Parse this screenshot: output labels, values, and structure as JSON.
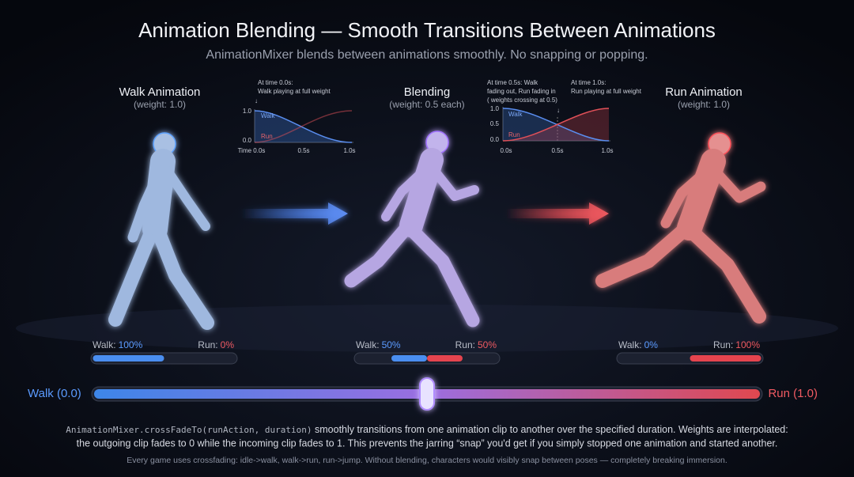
{
  "header": {
    "title": "Animation Blending — Smooth Transitions Between Animations",
    "subtitle": "AnimationMixer blends between animations smoothly. No snapping or popping."
  },
  "panels": [
    {
      "title": "Walk Animation",
      "weight": "(weight: 1.0)",
      "walk_label": "Walk:",
      "walk": {
        "value": 100,
        "label": "100%"
      },
      "run_label": "Run:",
      "run": {
        "value": 0,
        "label": "0%"
      }
    },
    {
      "title": "Blending",
      "weight": "(weight: 0.5 each)",
      "walk_label": "Walk:",
      "walk": {
        "value": 50,
        "label": "50%"
      },
      "run_label": "Run:",
      "run": {
        "value": 50,
        "label": "50%"
      }
    },
    {
      "title": "Run Animation",
      "weight": "(weight: 1.0)",
      "walk_label": "Walk:",
      "walk": {
        "value": 0,
        "label": "0%"
      },
      "run_label": "Run:",
      "run": {
        "value": 100,
        "label": "100%"
      }
    }
  ],
  "mini_chart_1": {
    "note": [
      "At time 0.0s:",
      "Walk playing at full weight"
    ],
    "arrow": "↓",
    "yticks": [
      "1.0",
      "0.0"
    ],
    "xticks": [
      "Time 0.0s",
      "0.5s",
      "1.0s"
    ],
    "walk": "Walk",
    "run": "Run"
  },
  "mini_chart_2": {
    "note_left": [
      "At time 0.5s: Walk",
      "fading out, Run fading in",
      "( weights crossing at 0.5)"
    ],
    "note_right": [
      "At time 1.0s:",
      "Run playing at full weight"
    ],
    "arrow": "↓",
    "yticks": [
      "1.0",
      "0.5",
      "0.0"
    ],
    "xticks": [
      "0.0s",
      "0.5s",
      "1.0s"
    ],
    "walk": "Walk",
    "run": "Run"
  },
  "slider": {
    "left": "Walk (0.0)",
    "right": "Run (1.0)"
  },
  "footer": {
    "code": "AnimationMixer.crossFadeTo(runAction, duration)",
    "line1": " smoothly transitions from one animation clip to another over the specified duration. Weights are interpolated:",
    "line2": "the outgoing clip fades to 0 while the incoming clip fades to 1. This prevents the jarring “snap” you'd get if you simply stopped one animation and started another.",
    "note": "Every game uses crossfading: idle->walk, walk->run, run->jump. Without blending, characters would visibly snap between poses — completely breaking immersion."
  }
}
